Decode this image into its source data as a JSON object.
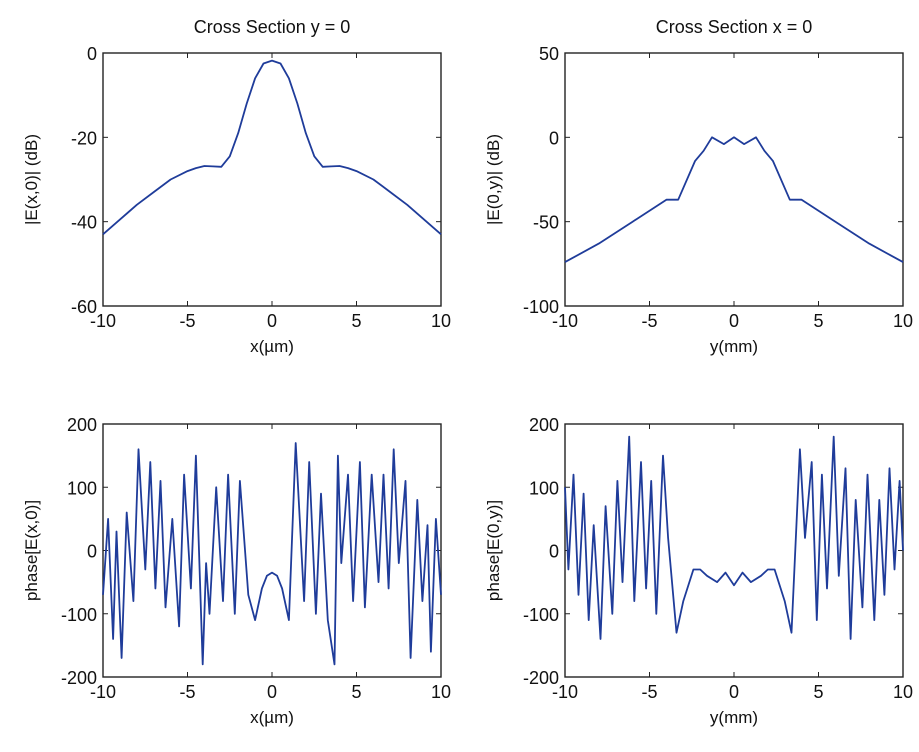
{
  "chart_data": [
    {
      "type": "line",
      "title": "Cross Section y = 0",
      "xlabel": "x(µm)",
      "ylabel": "|E(x,0)| (dB)",
      "xlim": [
        -10,
        10
      ],
      "ylim": [
        -60,
        0
      ],
      "xticks": [
        "-10",
        "-5",
        "0",
        "5",
        "10"
      ],
      "yticks": [
        "0",
        "-20",
        "-40",
        "-60"
      ],
      "grid": false,
      "line_color": "#1f3c9a",
      "series": [
        {
          "x": [
            -10,
            -9,
            -8,
            -7,
            -6,
            -5,
            -4.5,
            -4,
            -3.5,
            -3,
            -2.5,
            -2,
            -1.5,
            -1,
            -0.5,
            0,
            0.5,
            1,
            1.5,
            2,
            2.5,
            3,
            3.5,
            4,
            4.5,
            5,
            6,
            7,
            8,
            9,
            10
          ],
          "y": [
            -43,
            -39.5,
            -36,
            -33,
            -30,
            -28,
            -27.3,
            -26.8,
            -26.9,
            -27,
            -24.5,
            -19,
            -12,
            -6,
            -2.5,
            -1.8,
            -2.5,
            -6,
            -12,
            -19,
            -24.5,
            -27,
            -26.9,
            -26.8,
            -27.3,
            -28,
            -30,
            -33,
            -36,
            -39.5,
            -43
          ]
        }
      ]
    },
    {
      "type": "line",
      "title": "Cross Section x = 0",
      "xlabel": "y(mm)",
      "ylabel": "|E(0,y)| (dB)",
      "xlim": [
        -10,
        10
      ],
      "ylim": [
        -100,
        50
      ],
      "xticks": [
        "-10",
        "-5",
        "0",
        "5",
        "10"
      ],
      "yticks": [
        "50",
        "0",
        "-50",
        "-100"
      ],
      "grid": false,
      "line_color": "#1f3c9a",
      "series": [
        {
          "x": [
            -10,
            -8,
            -6,
            -4,
            -3.3,
            -2.3,
            -1.8,
            -1.3,
            -0.6,
            0,
            0.6,
            1.3,
            1.8,
            2.3,
            3.3,
            4,
            6,
            8,
            10
          ],
          "y": [
            -74,
            -63,
            -50,
            -37,
            -37,
            -14,
            -8,
            0,
            -4,
            0,
            -4,
            0,
            -8,
            -14,
            -37,
            -37,
            -50,
            -63,
            -74
          ]
        }
      ]
    },
    {
      "type": "line",
      "title": "",
      "xlabel": "x(µm)",
      "ylabel": "phase[E(x,0)]",
      "xlim": [
        -10,
        10
      ],
      "ylim": [
        -200,
        200
      ],
      "xticks": [
        "-10",
        "-5",
        "0",
        "5",
        "10"
      ],
      "yticks": [
        "200",
        "100",
        "0",
        "-100",
        "-200"
      ],
      "grid": false,
      "line_color": "#1f3c9a",
      "series": [
        {
          "x": [
            -10,
            -9.7,
            -9.4,
            -9.2,
            -8.9,
            -8.6,
            -8.2,
            -7.9,
            -7.5,
            -7.2,
            -6.9,
            -6.6,
            -6.3,
            -5.9,
            -5.5,
            -5.2,
            -4.8,
            -4.5,
            -4.1,
            -3.9,
            -3.7,
            -3.3,
            -2.9,
            -2.6,
            -2.2,
            -1.9,
            -1.4,
            -1,
            -0.6,
            -0.3,
            0,
            0.3,
            0.6,
            1,
            1.4,
            1.9,
            2.2,
            2.6,
            2.9,
            3.3,
            3.7,
            3.9,
            4.1,
            4.5,
            4.8,
            5.2,
            5.5,
            5.9,
            6.3,
            6.6,
            6.9,
            7.2,
            7.5,
            7.9,
            8.2,
            8.6,
            8.9,
            9.2,
            9.4,
            9.7,
            10
          ],
          "y": [
            -70,
            50,
            -140,
            30,
            -170,
            60,
            -80,
            160,
            -30,
            140,
            -60,
            110,
            -90,
            50,
            -120,
            120,
            -60,
            150,
            -180,
            -20,
            -100,
            100,
            -80,
            120,
            -100,
            110,
            -70,
            -110,
            -60,
            -40,
            -35,
            -40,
            -60,
            -110,
            170,
            -80,
            140,
            -100,
            90,
            -110,
            -180,
            150,
            -20,
            120,
            -80,
            140,
            -90,
            120,
            -50,
            120,
            -60,
            160,
            -20,
            110,
            -170,
            80,
            -80,
            40,
            -160,
            50,
            -70
          ]
        }
      ]
    },
    {
      "type": "line",
      "title": "",
      "xlabel": "y(mm)",
      "ylabel": "phase[E(0,y)]",
      "xlim": [
        -10,
        10
      ],
      "ylim": [
        -200,
        200
      ],
      "xticks": [
        "-10",
        "-5",
        "0",
        "5",
        "10"
      ],
      "yticks": [
        "200",
        "100",
        "0",
        "-100",
        "-200"
      ],
      "grid": false,
      "line_color": "#1f3c9a",
      "series": [
        {
          "x": [
            -10,
            -9.8,
            -9.5,
            -9.2,
            -8.9,
            -8.6,
            -8.3,
            -7.9,
            -7.6,
            -7.2,
            -6.9,
            -6.6,
            -6.2,
            -5.9,
            -5.5,
            -5.2,
            -4.9,
            -4.6,
            -4.2,
            -3.9,
            -3.4,
            -3,
            -2.4,
            -2,
            -1.6,
            -1,
            -0.5,
            0,
            0.5,
            1,
            1.6,
            2,
            2.4,
            3,
            3.4,
            3.9,
            4.2,
            4.6,
            4.9,
            5.2,
            5.5,
            5.9,
            6.2,
            6.6,
            6.9,
            7.2,
            7.6,
            7.9,
            8.3,
            8.6,
            8.9,
            9.2,
            9.5,
            9.8,
            10
          ],
          "y": [
            100,
            -30,
            120,
            -70,
            90,
            -110,
            40,
            -140,
            70,
            -100,
            110,
            -50,
            180,
            -80,
            140,
            -60,
            110,
            -100,
            150,
            20,
            -130,
            -80,
            -30,
            -30,
            -40,
            -50,
            -35,
            -55,
            -35,
            -50,
            -40,
            -30,
            -30,
            -80,
            -130,
            160,
            20,
            140,
            -110,
            120,
            -60,
            180,
            -40,
            130,
            -140,
            80,
            -90,
            120,
            -110,
            80,
            -70,
            130,
            -30,
            110,
            0
          ]
        }
      ]
    }
  ]
}
